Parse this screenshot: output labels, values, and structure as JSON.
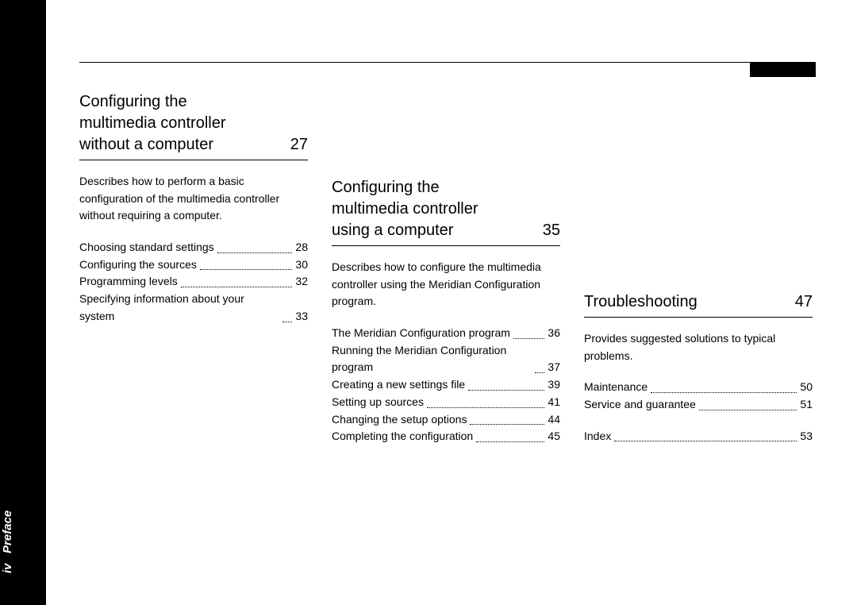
{
  "sidebar": {
    "page_roman": "iv",
    "section_name": "Preface"
  },
  "col1": {
    "header_title": "Configuring the\nmultimedia controller\nwithout a computer",
    "header_page": "27",
    "description": "Describes how to perform a basic configuration of the multimedia controller without requiring a computer.",
    "entries": [
      {
        "label": "Choosing standard settings",
        "page": "28"
      },
      {
        "label": "Configuring the sources",
        "page": "30"
      },
      {
        "label": "Programming levels",
        "page": "32"
      },
      {
        "label": "Specifying information about your system",
        "page": "33"
      }
    ]
  },
  "col2": {
    "header_title": "Configuring the\nmultimedia controller\nusing a computer",
    "header_page": "35",
    "description": "Describes how to configure the multimedia controller using the Meridian Configuration program.",
    "entries": [
      {
        "label": "The Meridian Configuration program",
        "page": "36"
      },
      {
        "label": "Running the Meridian Configuration program",
        "page": "37"
      },
      {
        "label": "Creating a new settings file",
        "page": "39"
      },
      {
        "label": "Setting up sources",
        "page": "41"
      },
      {
        "label": "Changing the setup options",
        "page": "44"
      },
      {
        "label": "Completing the configuration",
        "page": "45"
      }
    ]
  },
  "col3": {
    "header_title": "Troubleshooting",
    "header_page": "47",
    "description": "Provides suggested solutions to typical problems.",
    "entries": [
      {
        "label": "Maintenance",
        "page": "50"
      },
      {
        "label": "Service and guarantee",
        "page": "51"
      }
    ],
    "index": {
      "label": "Index",
      "page": "53"
    }
  }
}
